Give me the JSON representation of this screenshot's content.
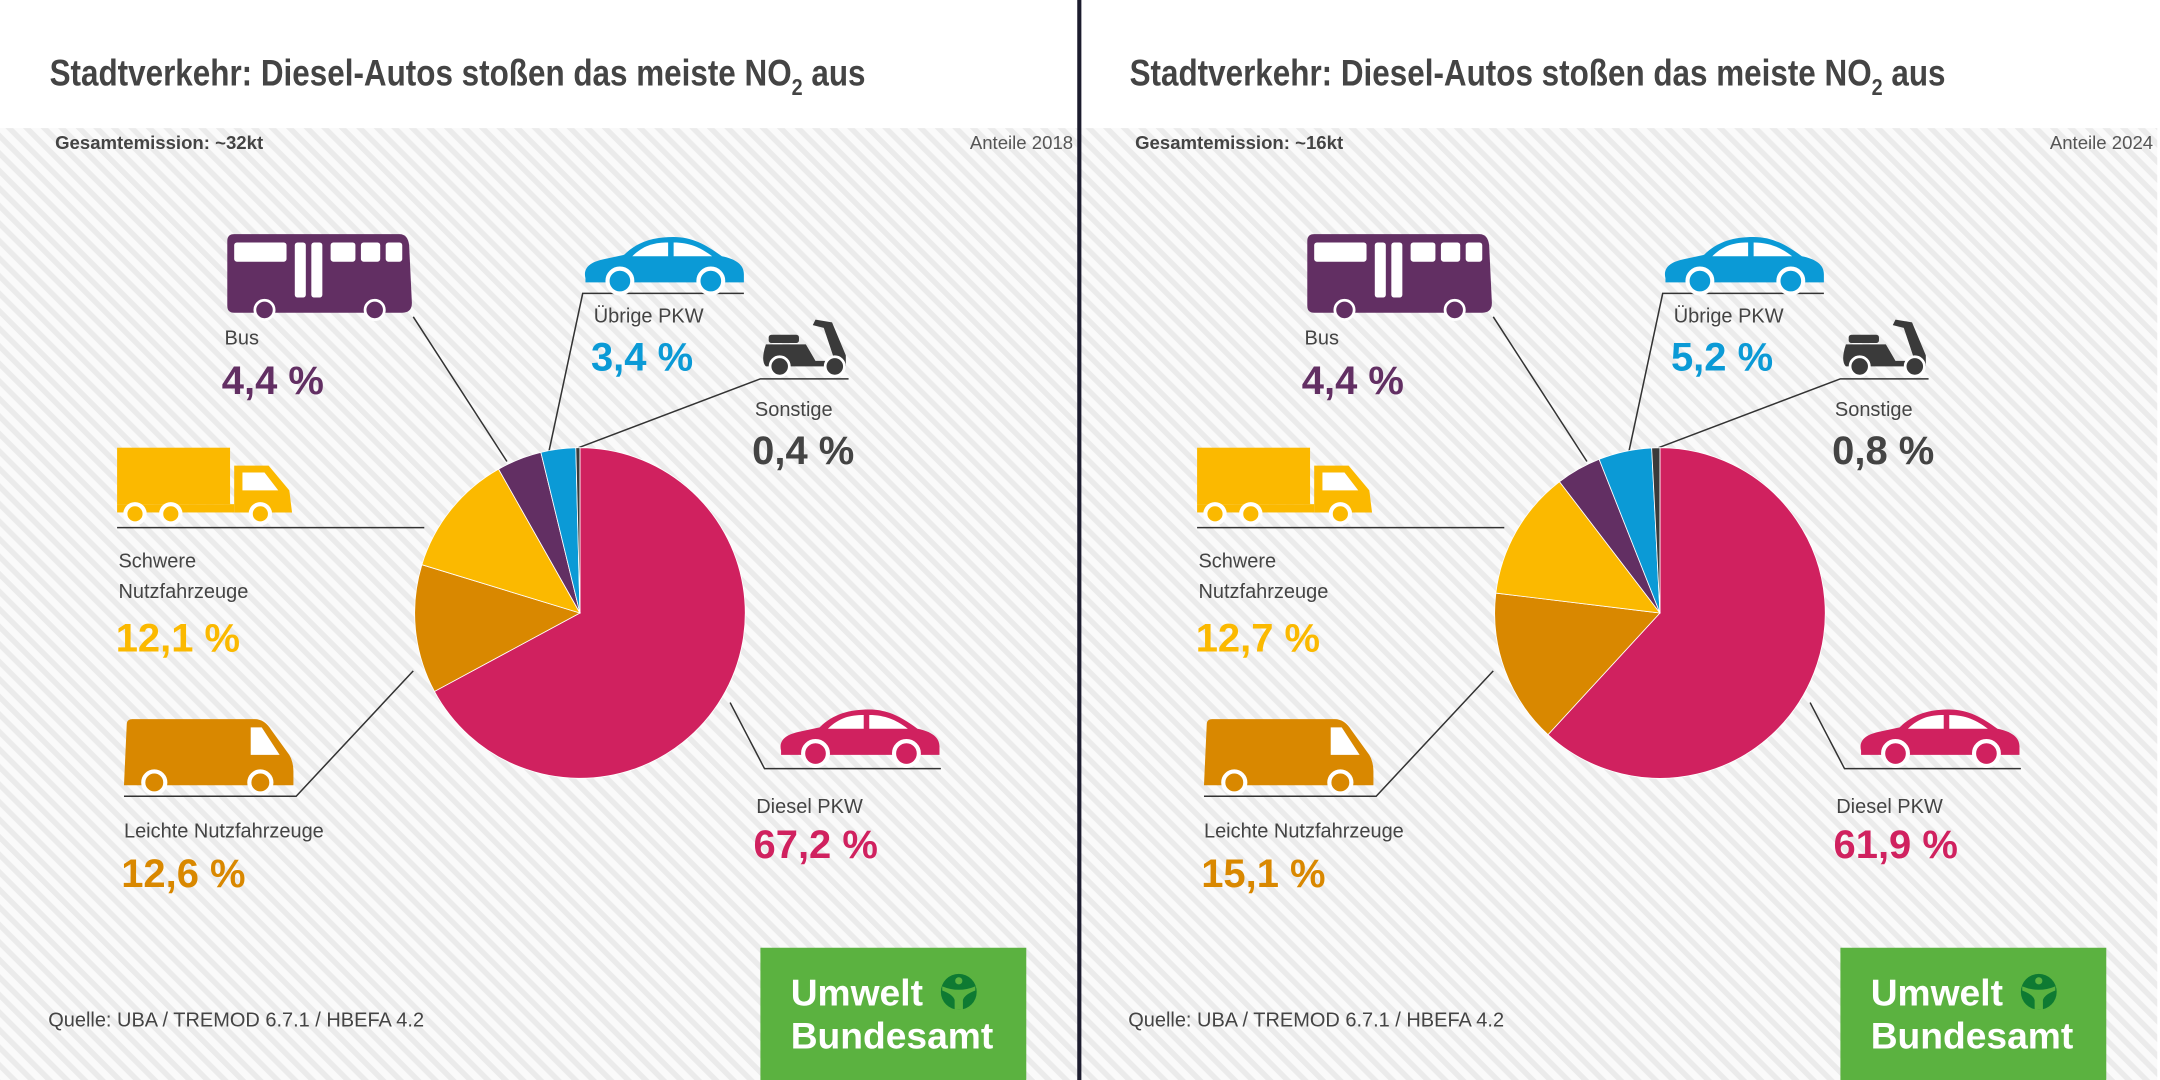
{
  "panels": [
    {
      "title_main": "Stadtverkehr: Diesel-Autos stoßen das meiste NO",
      "title_sub": "2",
      "title_end": " aus",
      "total": "Gesamtemission: ~32kt",
      "year": "Anteile 2018",
      "source": "Quelle: UBA / TREMOD 6.7.1 / HBEFA 4.2",
      "logo_line1": "Umwelt",
      "logo_line2": "Bundesamt"
    },
    {
      "title_main": "Stadtverkehr: Diesel-Autos stoßen das meiste NO",
      "title_sub": "2",
      "title_end": " aus",
      "total": "Gesamtemission: ~16kt",
      "year": "Anteile 2024",
      "source": "Quelle: UBA / TREMOD 6.7.1 / HBEFA 4.2",
      "logo_line1": "Umwelt",
      "logo_line2": "Bundesamt"
    }
  ],
  "colors": {
    "text": "#444444",
    "logo_green": "#5bb240",
    "logo_dark_green": "#0e7a32",
    "divider": "#1c1c2e"
  },
  "chart_data": [
    {
      "type": "pie",
      "title": "Stadtverkehr: Diesel-Autos stoßen das meiste NO2 aus",
      "subtitle": "Anteile 2018",
      "total": "~32kt",
      "direction": "clockwise from top",
      "slices": [
        {
          "key": "diesel",
          "label_lines": [
            "Diesel PKW"
          ],
          "value": 67.2,
          "value_label": "67,2 %",
          "color": "#d0215f",
          "icon": "car-icon"
        },
        {
          "key": "leichte",
          "label_lines": [
            "Leichte Nutzfahrzeuge"
          ],
          "value": 12.6,
          "value_label": "12,6 %",
          "color": "#d98800",
          "icon": "van-icon"
        },
        {
          "key": "schwere",
          "label_lines": [
            "Schwere",
            "Nutzfahrzeuge"
          ],
          "value": 12.1,
          "value_label": "12,1 %",
          "color": "#fbb900",
          "icon": "truck-icon"
        },
        {
          "key": "bus",
          "label_lines": [
            "Bus"
          ],
          "value": 4.4,
          "value_label": "4,4 %",
          "color": "#622f63",
          "icon": "bus-icon"
        },
        {
          "key": "uebrige",
          "label_lines": [
            "Übrige PKW"
          ],
          "value": 3.4,
          "value_label": "3,4 %",
          "color": "#0b9ad6",
          "icon": "car-icon"
        },
        {
          "key": "sonstige",
          "label_lines": [
            "Sonstige"
          ],
          "value": 0.4,
          "value_label": "0,4 %",
          "color": "#3a3a3a",
          "icon": "scooter-icon"
        }
      ]
    },
    {
      "type": "pie",
      "title": "Stadtverkehr: Diesel-Autos stoßen das meiste NO2 aus",
      "subtitle": "Anteile 2024",
      "total": "~16kt",
      "direction": "clockwise from top",
      "slices": [
        {
          "key": "diesel",
          "label_lines": [
            "Diesel PKW"
          ],
          "value": 61.9,
          "value_label": "61,9 %",
          "color": "#d0215f",
          "icon": "car-icon"
        },
        {
          "key": "leichte",
          "label_lines": [
            "Leichte Nutzfahrzeuge"
          ],
          "value": 15.1,
          "value_label": "15,1 %",
          "color": "#d98800",
          "icon": "van-icon"
        },
        {
          "key": "schwere",
          "label_lines": [
            "Schwere",
            "Nutzfahrzeuge"
          ],
          "value": 12.7,
          "value_label": "12,7 %",
          "color": "#fbb900",
          "icon": "truck-icon"
        },
        {
          "key": "bus",
          "label_lines": [
            "Bus"
          ],
          "value": 4.4,
          "value_label": "4,4 %",
          "color": "#622f63",
          "icon": "bus-icon"
        },
        {
          "key": "uebrige",
          "label_lines": [
            "Übrige PKW"
          ],
          "value": 5.2,
          "value_label": "5,2 %",
          "color": "#0b9ad6",
          "icon": "car-icon"
        },
        {
          "key": "sonstige",
          "label_lines": [
            "Sonstige"
          ],
          "value": 0.8,
          "value_label": "0,8 %",
          "color": "#3a3a3a",
          "icon": "scooter-icon"
        }
      ]
    }
  ]
}
